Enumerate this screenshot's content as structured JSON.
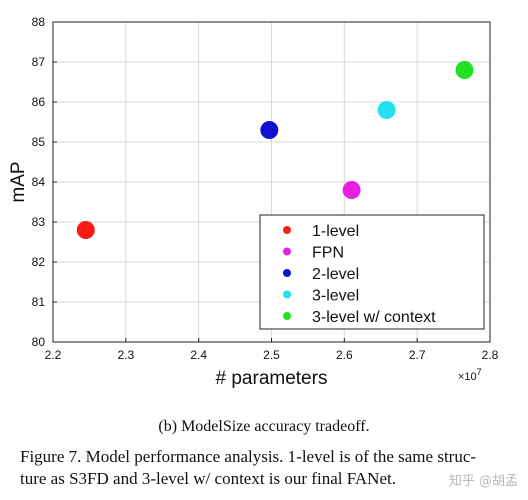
{
  "chart_data": {
    "type": "scatter",
    "title": "",
    "xlabel": "# parameters",
    "ylabel": "mAP",
    "x_exponent_label": "×10",
    "x_exponent_power": "7",
    "xlim": [
      2.2,
      2.8
    ],
    "ylim": [
      80,
      88
    ],
    "xticks": [
      "2.2",
      "2.3",
      "2.4",
      "2.5",
      "2.6",
      "2.7",
      "2.8"
    ],
    "yticks": [
      "80",
      "81",
      "82",
      "83",
      "84",
      "85",
      "86",
      "87",
      "88"
    ],
    "grid": true,
    "legend_position": "bottom-right",
    "series": [
      {
        "name": "1-level",
        "color": "#ff1a1a",
        "x": 2.245,
        "y": 82.8
      },
      {
        "name": "FPN",
        "color": "#e81ee0",
        "x": 2.61,
        "y": 83.8
      },
      {
        "name": "2-level",
        "color": "#1010d0",
        "x": 2.497,
        "y": 85.3
      },
      {
        "name": "3-level",
        "color": "#22e0f0",
        "x": 2.658,
        "y": 85.8
      },
      {
        "name": "3-level w/ context",
        "color": "#22e022",
        "x": 2.765,
        "y": 86.8
      }
    ]
  },
  "captions": {
    "subcaption": "(b)  ModelSize accuracy tradeoff.",
    "figure_line1": "Figure 7. Model performance analysis.  1-level is of the same struc-",
    "figure_line2": "ture as S3FD and 3-level w/ context is our final FANet."
  },
  "watermark": "知乎 @胡孟"
}
